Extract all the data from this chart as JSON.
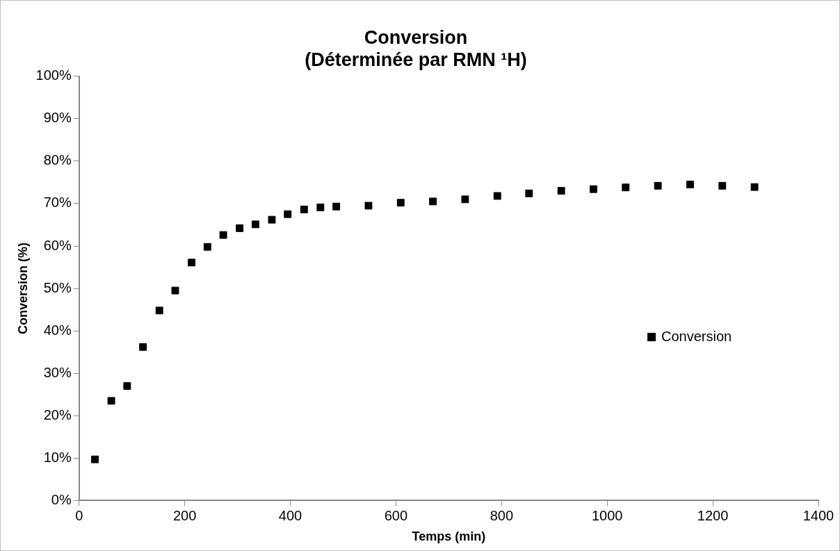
{
  "chart_data": {
    "type": "scatter",
    "title": [
      "Conversion",
      "(Déterminée par RMN ¹H)"
    ],
    "xlabel": "Temps (min)",
    "ylabel": "Conversion (%)",
    "series": [
      {
        "name": "Conversion",
        "color": "#000000",
        "x": [
          30,
          61,
          91,
          121,
          152,
          182,
          213,
          243,
          273,
          304,
          334,
          365,
          395,
          426,
          457,
          487,
          548,
          609,
          670,
          731,
          792,
          852,
          913,
          974,
          1035,
          1096,
          1157,
          1218,
          1279
        ],
        "values": [
          9.7,
          23.5,
          27.0,
          36.2,
          44.8,
          49.5,
          56.1,
          59.8,
          62.6,
          64.2,
          65.1,
          66.2,
          67.5,
          68.6,
          69.1,
          69.3,
          69.5,
          70.2,
          70.5,
          71.0,
          71.8,
          72.4,
          73.0,
          73.4,
          73.8,
          74.2,
          74.5,
          74.2,
          73.9
        ]
      }
    ],
    "xlim": [
      0,
      1400
    ],
    "xticks": [
      0,
      200,
      400,
      600,
      800,
      1000,
      1200,
      1400
    ],
    "ylim": [
      0,
      100
    ],
    "yticks": [
      {
        "value": 0,
        "label": "0%"
      },
      {
        "value": 10,
        "label": "10%"
      },
      {
        "value": 20,
        "label": "20%"
      },
      {
        "value": 30,
        "label": "30%"
      },
      {
        "value": 40,
        "label": "40%"
      },
      {
        "value": 50,
        "label": "50%"
      },
      {
        "value": 60,
        "label": "60%"
      },
      {
        "value": 70,
        "label": "70%"
      },
      {
        "value": 80,
        "label": "80%"
      },
      {
        "value": 90,
        "label": "90%"
      },
      {
        "value": 100,
        "label": "100%"
      }
    ],
    "grid": false,
    "legend": "right",
    "marker": "square"
  }
}
